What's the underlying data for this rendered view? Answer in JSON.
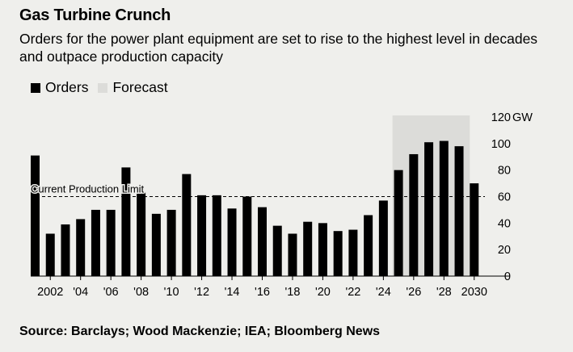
{
  "title": "Gas Turbine Crunch",
  "subtitle": "Orders for the power plant equipment are set to rise to the highest level in decades and outpace production capacity",
  "source": "Source: Barclays; Wood Mackenzie; IEA; Bloomberg News",
  "colors": {
    "background": "#efefec",
    "bars": "#000000",
    "forecast_shade": "#dcdcd9",
    "text": "#000000"
  },
  "chart_data": {
    "type": "bar",
    "title": "Gas Turbine Crunch",
    "xlabel": "",
    "ylabel": "GW",
    "ylim": [
      0,
      120
    ],
    "y_ticks": [
      0,
      20,
      40,
      60,
      80,
      100,
      120
    ],
    "y_tick_labels": [
      "0",
      "20",
      "40",
      "60",
      "80",
      "100",
      "120"
    ],
    "y_unit": "GW",
    "categories": [
      2001,
      2002,
      2003,
      2004,
      2005,
      2006,
      2007,
      2008,
      2009,
      2010,
      2011,
      2012,
      2013,
      2014,
      2015,
      2016,
      2017,
      2018,
      2019,
      2020,
      2021,
      2022,
      2023,
      2024,
      2025,
      2026,
      2027,
      2028,
      2029,
      2030
    ],
    "series": [
      {
        "name": "Orders",
        "values": [
          91,
          32,
          39,
          43,
          50,
          50,
          82,
          63,
          47,
          50,
          77,
          61,
          61,
          51,
          60,
          52,
          38,
          32,
          41,
          40,
          34,
          35,
          46,
          57,
          80,
          92,
          101,
          102,
          98,
          70
        ]
      }
    ],
    "x_ticks": [
      {
        "year": 2002,
        "label": "2002"
      },
      {
        "year": 2004,
        "label": "'04"
      },
      {
        "year": 2006,
        "label": "'06"
      },
      {
        "year": 2008,
        "label": "'08"
      },
      {
        "year": 2010,
        "label": "'10"
      },
      {
        "year": 2012,
        "label": "'12"
      },
      {
        "year": 2014,
        "label": "'14"
      },
      {
        "year": 2016,
        "label": "'16"
      },
      {
        "year": 2018,
        "label": "'18"
      },
      {
        "year": 2020,
        "label": "'20"
      },
      {
        "year": 2022,
        "label": "'22"
      },
      {
        "year": 2024,
        "label": "'24"
      },
      {
        "year": 2026,
        "label": "'26"
      },
      {
        "year": 2028,
        "label": "'28"
      },
      {
        "year": 2030,
        "label": "2030"
      }
    ],
    "forecast": {
      "label": "Forecast",
      "start_year": 2025,
      "end_year": 2029
    },
    "reference_line": {
      "label": "Current Production Limit",
      "value": 60
    },
    "legend": [
      {
        "label": "Orders",
        "kind": "orders"
      },
      {
        "label": "Forecast",
        "kind": "forecast"
      }
    ],
    "legend_position": "top-left",
    "grid": false
  }
}
